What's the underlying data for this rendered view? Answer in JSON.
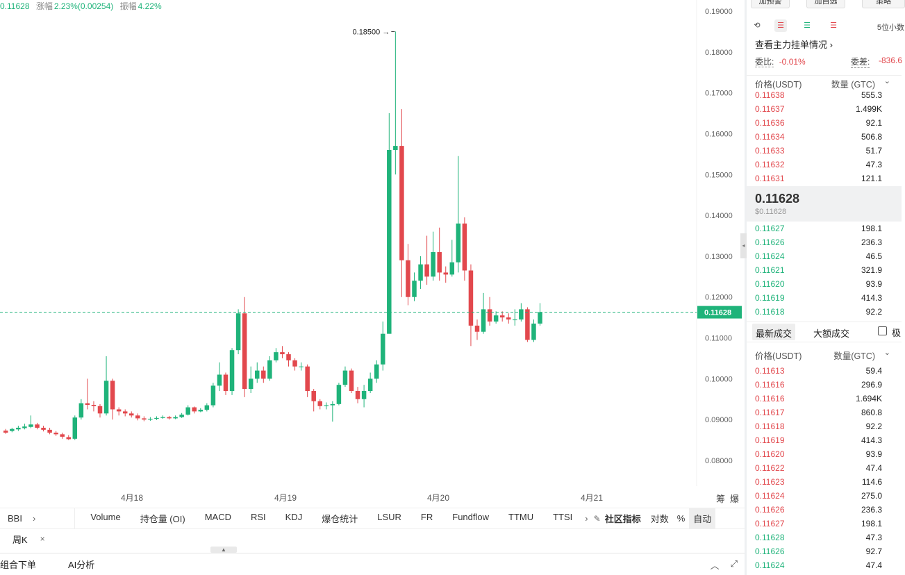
{
  "ticker": {
    "price": "0.11628",
    "change_label": "涨幅",
    "change_value": "2.23%(0.00254)",
    "amp_label": "振幅",
    "amp_value": "4.22%"
  },
  "chart_data": {
    "type": "candlestick",
    "ylim": [
      0.075,
      0.19
    ],
    "y_ticks": [
      "0.19000",
      "0.18000",
      "0.17000",
      "0.16000",
      "0.15000",
      "0.14000",
      "0.13000",
      "0.12000",
      "0.11000",
      "0.10000",
      "0.09000",
      "0.08000"
    ],
    "y_tick_values": [
      0.19,
      0.18,
      0.17,
      0.16,
      0.15,
      0.14,
      0.13,
      0.12,
      0.11,
      0.1,
      0.09,
      0.08
    ],
    "x_labels": [
      "4月18",
      "4月19",
      "4月20",
      "4月21"
    ],
    "current_price": 0.11628,
    "current_price_label": "0.11628",
    "max_label": "0.18500",
    "max_value": 0.185,
    "right_icons": [
      "筹",
      "爆"
    ],
    "candles": [
      [
        0.0873,
        0.0868,
        0.0877,
        0.0865
      ],
      [
        0.0872,
        0.0877,
        0.088,
        0.0869
      ],
      [
        0.0876,
        0.088,
        0.0885,
        0.0872
      ],
      [
        0.0879,
        0.0883,
        0.089,
        0.0876
      ],
      [
        0.0882,
        0.0888,
        0.091,
        0.0879
      ],
      [
        0.0888,
        0.088,
        0.0892,
        0.0876
      ],
      [
        0.088,
        0.0875,
        0.0885,
        0.0871
      ],
      [
        0.0875,
        0.0868,
        0.088,
        0.0864
      ],
      [
        0.0868,
        0.0864,
        0.0872,
        0.086
      ],
      [
        0.0864,
        0.0858,
        0.0868,
        0.0853
      ],
      [
        0.0857,
        0.0852,
        0.0862,
        0.085
      ],
      [
        0.0853,
        0.0905,
        0.091,
        0.085
      ],
      [
        0.0905,
        0.094,
        0.095,
        0.09
      ],
      [
        0.094,
        0.0936,
        0.1,
        0.0925
      ],
      [
        0.0936,
        0.0933,
        0.0945,
        0.092
      ],
      [
        0.0933,
        0.0915,
        0.0938,
        0.0905
      ],
      [
        0.0915,
        0.0995,
        0.1055,
        0.091
      ],
      [
        0.0995,
        0.0925,
        0.1,
        0.09
      ],
      [
        0.0925,
        0.092,
        0.093,
        0.091
      ],
      [
        0.092,
        0.0915,
        0.0925,
        0.0908
      ],
      [
        0.0915,
        0.091,
        0.092,
        0.0905
      ],
      [
        0.091,
        0.0903,
        0.0915,
        0.0898
      ],
      [
        0.0903,
        0.09,
        0.0908,
        0.0896
      ],
      [
        0.09,
        0.0902,
        0.0906,
        0.0897
      ],
      [
        0.0902,
        0.0904,
        0.0908,
        0.0899
      ],
      [
        0.0904,
        0.0906,
        0.091,
        0.0902
      ],
      [
        0.0906,
        0.0903,
        0.0909,
        0.09
      ],
      [
        0.0903,
        0.0906,
        0.091,
        0.0901
      ],
      [
        0.0906,
        0.0912,
        0.0916,
        0.0904
      ],
      [
        0.0912,
        0.093,
        0.0935,
        0.091
      ],
      [
        0.093,
        0.092,
        0.0932,
        0.0915
      ],
      [
        0.092,
        0.0924,
        0.0928,
        0.0918
      ],
      [
        0.0924,
        0.0935,
        0.094,
        0.092
      ],
      [
        0.0935,
        0.0983,
        0.099,
        0.093
      ],
      [
        0.0983,
        0.101,
        0.104,
        0.097
      ],
      [
        0.101,
        0.097,
        0.1015,
        0.096
      ],
      [
        0.097,
        0.107,
        0.1075,
        0.096
      ],
      [
        0.107,
        0.116,
        0.117,
        0.106
      ],
      [
        0.116,
        0.0975,
        0.12,
        0.0955
      ],
      [
        0.0975,
        0.1,
        0.103,
        0.0965
      ],
      [
        0.1,
        0.102,
        0.104,
        0.099
      ],
      [
        0.102,
        0.1,
        0.103,
        0.099
      ],
      [
        0.1,
        0.1045,
        0.1055,
        0.0995
      ],
      [
        0.1045,
        0.1065,
        0.1075,
        0.104
      ],
      [
        0.1065,
        0.106,
        0.108,
        0.105
      ],
      [
        0.106,
        0.1045,
        0.1065,
        0.103
      ],
      [
        0.1045,
        0.103,
        0.105,
        0.102
      ],
      [
        0.103,
        0.103,
        0.104,
        0.102
      ],
      [
        0.103,
        0.097,
        0.1035,
        0.0955
      ],
      [
        0.097,
        0.0945,
        0.0975,
        0.092
      ],
      [
        0.0945,
        0.0933,
        0.095,
        0.0925
      ],
      [
        0.0933,
        0.0935,
        0.0942,
        0.0925
      ],
      [
        0.0935,
        0.0938,
        0.0945,
        0.0895
      ],
      [
        0.0938,
        0.0985,
        0.099,
        0.0935
      ],
      [
        0.0985,
        0.102,
        0.103,
        0.098
      ],
      [
        0.102,
        0.097,
        0.1025,
        0.0965
      ],
      [
        0.097,
        0.095,
        0.098,
        0.094
      ],
      [
        0.095,
        0.097,
        0.0985,
        0.093
      ],
      [
        0.097,
        0.1,
        0.1015,
        0.0965
      ],
      [
        0.1,
        0.1035,
        0.1045,
        0.099
      ],
      [
        0.1035,
        0.111,
        0.114,
        0.102
      ],
      [
        0.111,
        0.156,
        0.165,
        0.111
      ],
      [
        0.156,
        0.157,
        0.185,
        0.15
      ],
      [
        0.157,
        0.129,
        0.166,
        0.12
      ],
      [
        0.129,
        0.12,
        0.133,
        0.118
      ],
      [
        0.12,
        0.124,
        0.126,
        0.119
      ],
      [
        0.124,
        0.128,
        0.13,
        0.122
      ],
      [
        0.128,
        0.125,
        0.135,
        0.123
      ],
      [
        0.125,
        0.131,
        0.136,
        0.124
      ],
      [
        0.131,
        0.126,
        0.137,
        0.124
      ],
      [
        0.126,
        0.1255,
        0.1275,
        0.1235
      ],
      [
        0.1255,
        0.1285,
        0.134,
        0.125
      ],
      [
        0.1285,
        0.138,
        0.1545,
        0.126
      ],
      [
        0.138,
        0.1265,
        0.1395,
        0.124
      ],
      [
        0.1265,
        0.113,
        0.128,
        0.108
      ],
      [
        0.113,
        0.1115,
        0.1145,
        0.1095
      ],
      [
        0.1115,
        0.117,
        0.121,
        0.111
      ],
      [
        0.117,
        0.114,
        0.12,
        0.113
      ],
      [
        0.114,
        0.1155,
        0.1165,
        0.1135
      ],
      [
        0.1155,
        0.115,
        0.1165,
        0.114
      ],
      [
        0.115,
        0.1145,
        0.116,
        0.1135
      ],
      [
        0.1145,
        0.1145,
        0.117,
        0.113
      ],
      [
        0.1145,
        0.117,
        0.1185,
        0.114
      ],
      [
        0.117,
        0.1095,
        0.1175,
        0.109
      ],
      [
        0.1095,
        0.1135,
        0.1145,
        0.109
      ],
      [
        0.1135,
        0.1163,
        0.1185,
        0.113
      ]
    ]
  },
  "indicators": {
    "first": "BBI",
    "first_arrow": "›",
    "items": [
      "Volume",
      "持仓量 (OI)",
      "MACD",
      "RSI",
      "KDJ",
      "爆仓统计",
      "LSUR",
      "FR",
      "Fundflow",
      "TTMU",
      "TTSI"
    ],
    "more_arrow": "›",
    "community": "社区指标",
    "log": "对数",
    "pct": "%",
    "auto": "自动"
  },
  "tags": {
    "weekly": "周K",
    "close": "×"
  },
  "bottom": {
    "combo_order": "组合下单",
    "ai": "AI分析"
  },
  "orderbook": {
    "top_buttons": [
      "加预警",
      "加自选",
      "策略"
    ],
    "decimals": "5位小数",
    "main_force": "查看主力挂单情况 ›",
    "ratio_label": "委比:",
    "ratio_value": "-0.01%",
    "diff_label": "委差:",
    "diff_value": "-836.6",
    "price_header": "价格(USDT)",
    "qty_header": "数量 (GTC)",
    "asks": [
      {
        "p": "0.11638",
        "q": "555.3"
      },
      {
        "p": "0.11637",
        "q": "1.499K"
      },
      {
        "p": "0.11636",
        "q": "92.1"
      },
      {
        "p": "0.11634",
        "q": "506.8"
      },
      {
        "p": "0.11633",
        "q": "51.7"
      },
      {
        "p": "0.11632",
        "q": "47.3"
      },
      {
        "p": "0.11631",
        "q": "121.1"
      }
    ],
    "last_price": "0.11628",
    "last_price_usd": "$0.11628",
    "bids": [
      {
        "p": "0.11627",
        "q": "198.1"
      },
      {
        "p": "0.11626",
        "q": "236.3"
      },
      {
        "p": "0.11624",
        "q": "46.5"
      },
      {
        "p": "0.11621",
        "q": "321.9"
      },
      {
        "p": "0.11620",
        "q": "93.9"
      },
      {
        "p": "0.11619",
        "q": "414.3"
      },
      {
        "p": "0.11618",
        "q": "92.2"
      }
    ],
    "tab_latest": "最新成交",
    "tab_large": "大额成交",
    "tab_extra": "极",
    "trades_price_header": "价格(USDT)",
    "trades_qty_header": "数量(GTC)",
    "trades": [
      {
        "p": "0.11613",
        "q": "59.4",
        "s": "red"
      },
      {
        "p": "0.11616",
        "q": "296.9",
        "s": "red"
      },
      {
        "p": "0.11616",
        "q": "1.694K",
        "s": "red"
      },
      {
        "p": "0.11617",
        "q": "860.8",
        "s": "red"
      },
      {
        "p": "0.11618",
        "q": "92.2",
        "s": "red"
      },
      {
        "p": "0.11619",
        "q": "414.3",
        "s": "red"
      },
      {
        "p": "0.11620",
        "q": "93.9",
        "s": "red"
      },
      {
        "p": "0.11622",
        "q": "47.4",
        "s": "red"
      },
      {
        "p": "0.11623",
        "q": "114.6",
        "s": "red"
      },
      {
        "p": "0.11624",
        "q": "275.0",
        "s": "red"
      },
      {
        "p": "0.11626",
        "q": "236.3",
        "s": "red"
      },
      {
        "p": "0.11627",
        "q": "198.1",
        "s": "red"
      },
      {
        "p": "0.11628",
        "q": "47.3",
        "s": "green"
      },
      {
        "p": "0.11626",
        "q": "92.7",
        "s": "green"
      },
      {
        "p": "0.11624",
        "q": "47.4",
        "s": "green"
      }
    ],
    "colors": {
      "up": "#1fb37a",
      "down": "#e2484d"
    }
  }
}
